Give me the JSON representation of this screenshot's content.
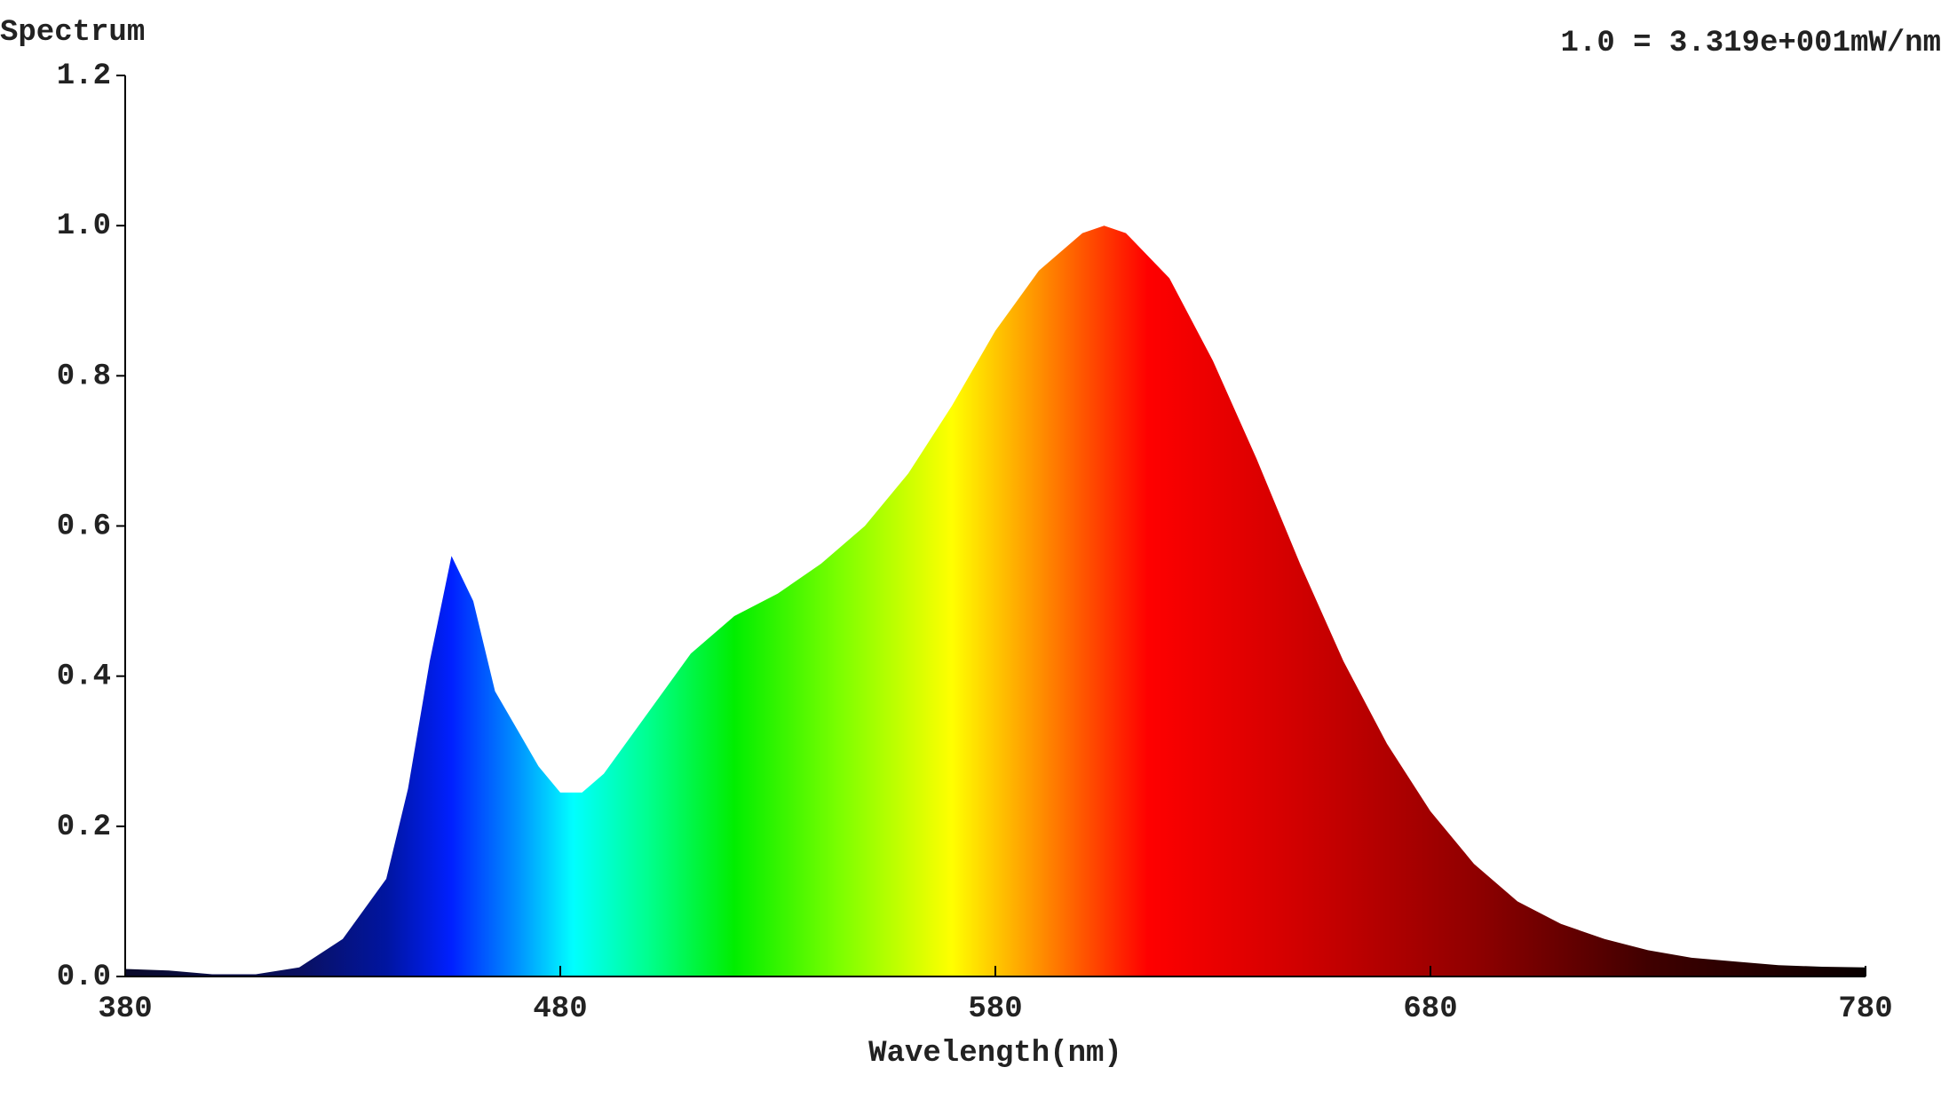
{
  "chart_data": {
    "type": "area",
    "y_label": "Spectrum",
    "annotation": "1.0 = 3.319e+001mW/nm",
    "x_label": "Wavelength(nm)",
    "x": [
      380,
      390,
      400,
      410,
      420,
      430,
      440,
      445,
      450,
      455,
      460,
      465,
      470,
      475,
      480,
      485,
      490,
      500,
      510,
      520,
      530,
      540,
      550,
      560,
      570,
      580,
      590,
      600,
      605,
      610,
      620,
      630,
      640,
      650,
      660,
      670,
      680,
      690,
      700,
      710,
      720,
      730,
      740,
      750,
      760,
      770,
      780
    ],
    "values": [
      0.01,
      0.008,
      0.003,
      0.003,
      0.012,
      0.05,
      0.13,
      0.25,
      0.42,
      0.56,
      0.5,
      0.38,
      0.33,
      0.28,
      0.245,
      0.245,
      0.27,
      0.35,
      0.43,
      0.48,
      0.51,
      0.55,
      0.6,
      0.67,
      0.76,
      0.86,
      0.94,
      0.99,
      1.0,
      0.99,
      0.93,
      0.82,
      0.69,
      0.55,
      0.42,
      0.31,
      0.22,
      0.15,
      0.1,
      0.07,
      0.05,
      0.035,
      0.025,
      0.02,
      0.015,
      0.013,
      0.012
    ],
    "xlim": [
      380,
      780
    ],
    "xticks": [
      380,
      480,
      580,
      680,
      780
    ],
    "ylim": [
      0,
      1.2
    ],
    "yticks": [
      {
        "value": 0,
        "label": "0.0"
      },
      0.2,
      0.4,
      0.6,
      0.8,
      {
        "value": 1,
        "label": "1.0"
      },
      1.2
    ],
    "grid": false
  }
}
